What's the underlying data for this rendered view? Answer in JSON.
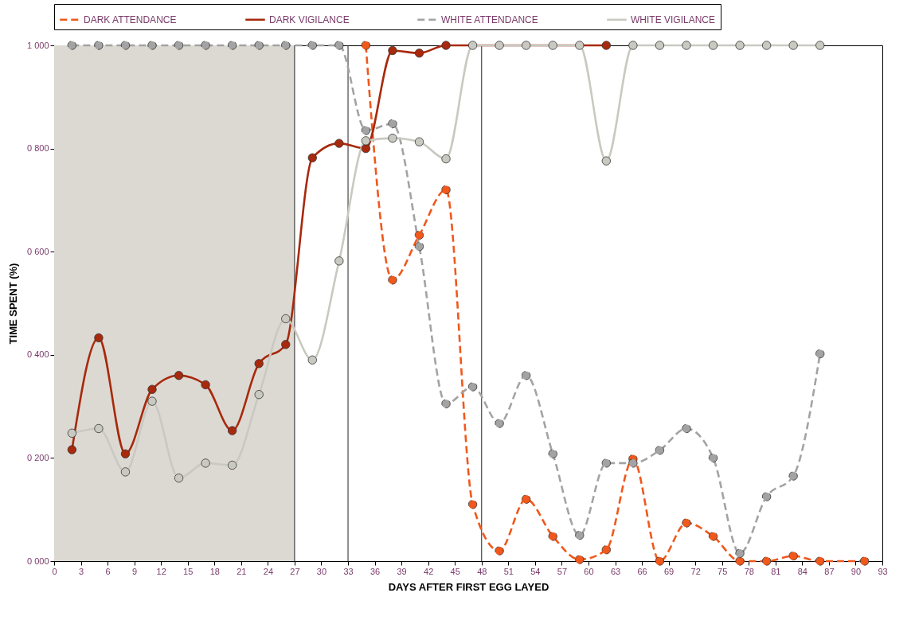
{
  "chart_data": {
    "type": "line",
    "xlabel": "DAYS AFTER FIRST EGG LAYED",
    "ylabel": "TIME SPENT (%)",
    "xlim": [
      0,
      93
    ],
    "xticks": [
      0,
      3,
      6,
      9,
      12,
      15,
      18,
      21,
      24,
      27,
      30,
      33,
      36,
      39,
      42,
      45,
      48,
      51,
      54,
      57,
      60,
      63,
      66,
      69,
      72,
      75,
      78,
      81,
      84,
      87,
      90,
      93
    ],
    "ylim": [
      0,
      1000
    ],
    "yticks": [
      {
        "value": 0,
        "label": "0 000"
      },
      {
        "value": 200,
        "label": "0 200"
      },
      {
        "value": 400,
        "label": "0 400"
      },
      {
        "value": 600,
        "label": "0 600"
      },
      {
        "value": 800,
        "label": "0 800"
      },
      {
        "value": 1000,
        "label": "1 000"
      }
    ],
    "legend": "top",
    "marker": "circle",
    "grid": false,
    "bands": [
      {
        "axis": "x",
        "from": 0,
        "to": 27,
        "color": "#dcd9d3"
      }
    ],
    "ref_lines": [
      {
        "axis": "x",
        "value": 27,
        "color": "#222222"
      },
      {
        "axis": "x",
        "value": 33,
        "color": "#222222"
      },
      {
        "axis": "x",
        "value": 48,
        "color": "#222222"
      }
    ],
    "series": [
      {
        "name": "DARK ATTENDANCE",
        "color": "#f0581c",
        "line_style": "dashed",
        "x": [
          35,
          38,
          41,
          44,
          47,
          50,
          53,
          56,
          59,
          62,
          65,
          68,
          71,
          74,
          77,
          80,
          83,
          86,
          91
        ],
        "values": [
          1000,
          545,
          632,
          720,
          110,
          20,
          120,
          48,
          3,
          22,
          198,
          0,
          74,
          48,
          0,
          0,
          10,
          0,
          0
        ]
      },
      {
        "name": "DARK VIGILANCE",
        "color": "#a8290c",
        "line_style": "solid",
        "x": [
          2,
          5,
          8,
          11,
          14,
          17,
          20,
          23,
          26,
          29,
          32,
          35,
          38,
          41,
          44,
          62
        ],
        "values": [
          216,
          433,
          208,
          333,
          360,
          342,
          253,
          383,
          420,
          782,
          810,
          800,
          990,
          985,
          1000,
          1000
        ]
      },
      {
        "name": "WHITE ATTENDANCE",
        "color": "#a3a3a3",
        "line_style": "dashed",
        "x": [
          2,
          5,
          8,
          11,
          14,
          17,
          20,
          23,
          26,
          29,
          32,
          35,
          38,
          41,
          44,
          47,
          50,
          53,
          56,
          59,
          62,
          65,
          68,
          71,
          74,
          77,
          80,
          83,
          86
        ],
        "values": [
          1000,
          1000,
          1000,
          1000,
          1000,
          1000,
          1000,
          1000,
          1000,
          1000,
          1000,
          835,
          848,
          610,
          305,
          338,
          267,
          360,
          208,
          50,
          190,
          190,
          215,
          257,
          200,
          15,
          125,
          165,
          402
        ]
      },
      {
        "name": "WHITE VIGILANCE",
        "color": "#c9c9c1",
        "line_style": "solid",
        "x": [
          2,
          5,
          8,
          11,
          14,
          17,
          20,
          23,
          26,
          29,
          32,
          35,
          38,
          41,
          44,
          47,
          50,
          53,
          56,
          59,
          62,
          65,
          68,
          71,
          74,
          77,
          80,
          83,
          86
        ],
        "values": [
          248,
          257,
          173,
          310,
          161,
          190,
          186,
          323,
          470,
          390,
          582,
          815,
          820,
          813,
          780,
          1000,
          1000,
          1000,
          1000,
          1000,
          776,
          1000,
          1000,
          1000,
          1000,
          1000,
          1000,
          1000,
          1000
        ]
      }
    ]
  }
}
